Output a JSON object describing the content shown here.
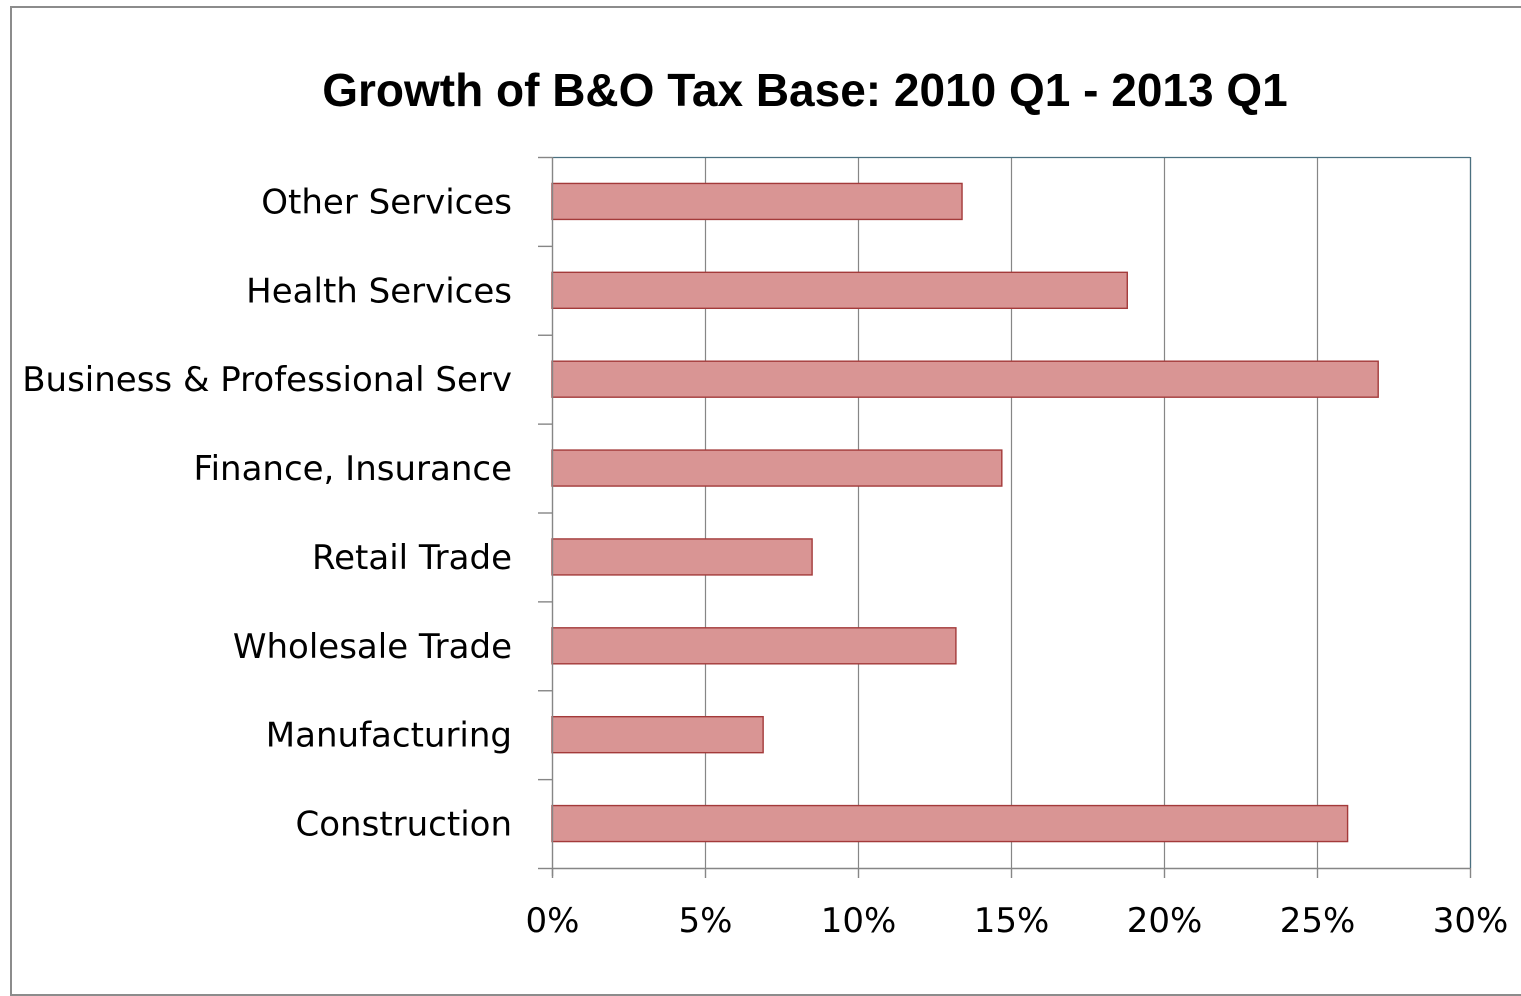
{
  "chart_data": {
    "type": "bar",
    "orientation": "horizontal",
    "title": "Growth of B&O Tax Base: 2010 Q1 - 2013 Q1",
    "xlabel": "",
    "ylabel": "",
    "categories": [
      "Other Services",
      "Health Services",
      "Business & Professional Serv",
      "Finance, Insurance",
      "Retail Trade",
      "Wholesale Trade",
      "Manufacturing",
      "Construction"
    ],
    "values": [
      13.4,
      18.8,
      27.0,
      14.7,
      8.5,
      13.2,
      6.9,
      26.0
    ],
    "xlim": [
      0,
      30
    ],
    "xticks": [
      0,
      5,
      10,
      15,
      20,
      25,
      30
    ],
    "xtick_labels": [
      "0%",
      "5%",
      "10%",
      "15%",
      "20%",
      "25%",
      "30%"
    ],
    "grid": "vertical",
    "legend": "none",
    "colors": {
      "bar_fill": "#d99594",
      "bar_stroke": "#a33a3a",
      "grid": "#868686",
      "plot_border": "#4a7080"
    }
  }
}
